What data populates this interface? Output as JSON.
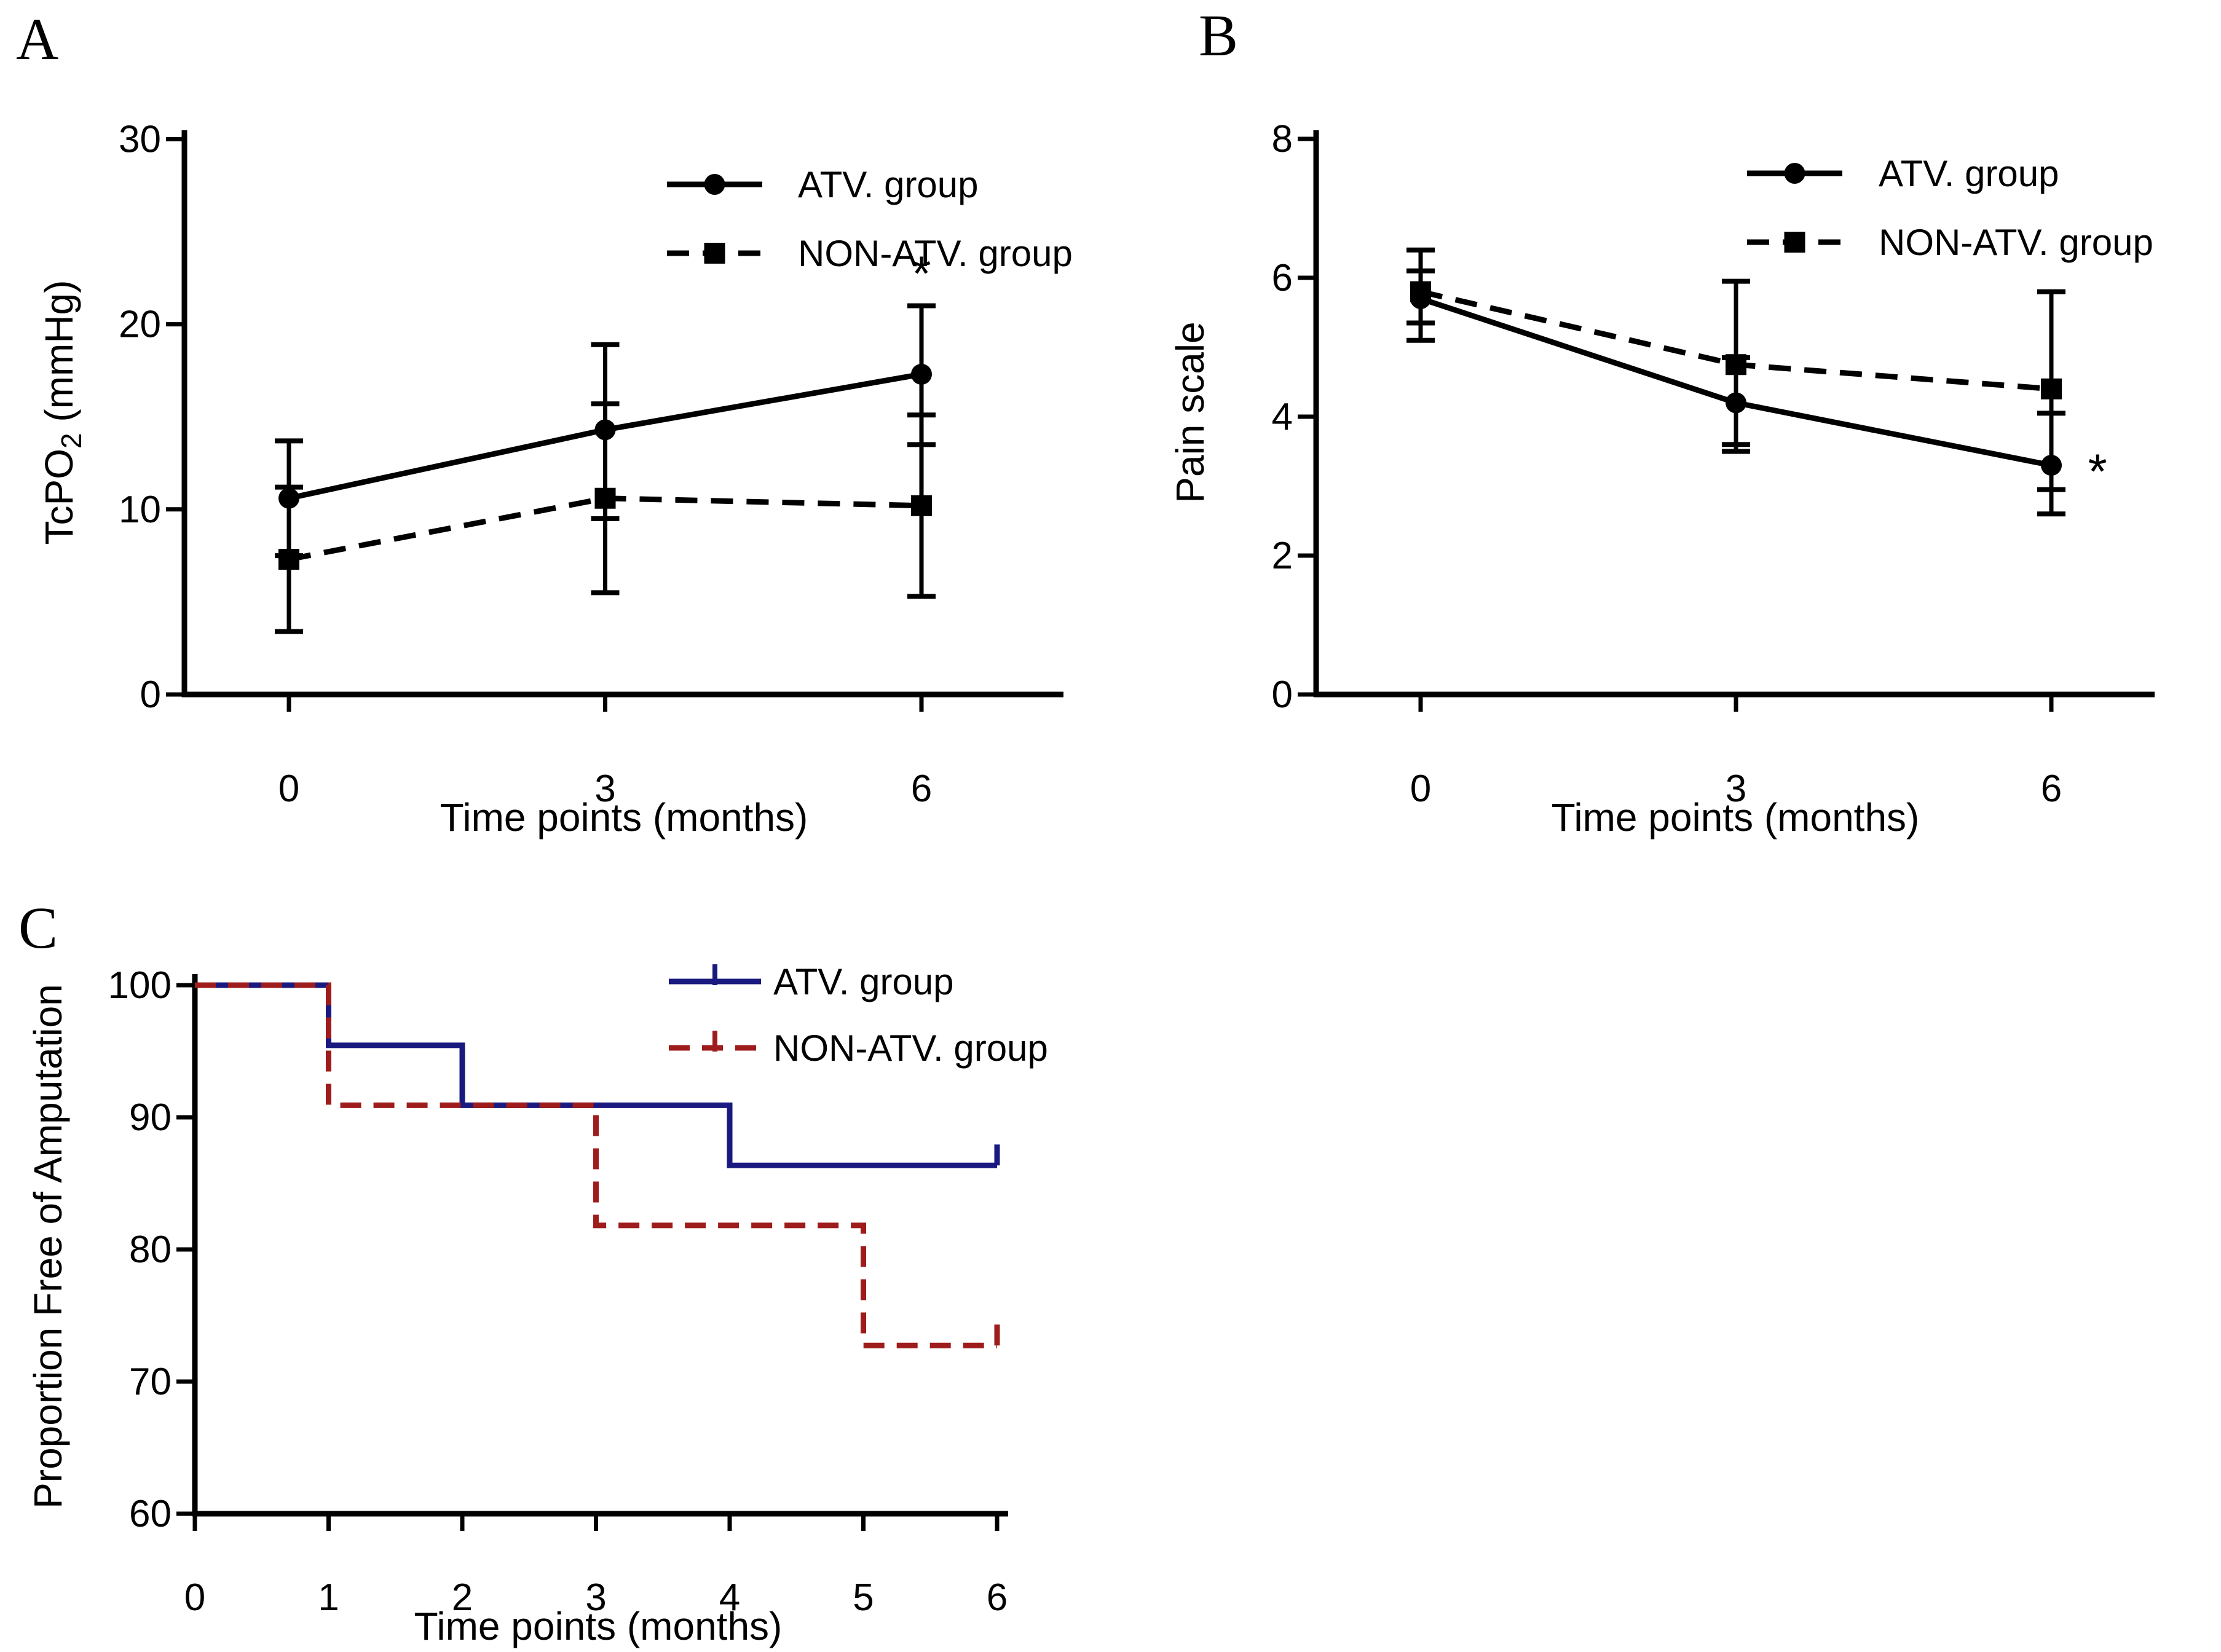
{
  "page": {
    "background": "#ffffff"
  },
  "colors": {
    "black": "#000000",
    "atv_blue": "#191980",
    "non_atv_red": "#9e1c1c"
  },
  "panel_labels": [
    "A",
    "B",
    "C"
  ],
  "chart_data": [
    {
      "id": "A",
      "panel_label": "A",
      "type": "line",
      "xlabel": "Time points (months)",
      "ylabel": "TcPO2 (mmHg)",
      "ylabel_parts": {
        "pre": "TcPO",
        "sub": "2",
        "post": " (mmHg)"
      },
      "xticks": [
        0,
        3,
        6
      ],
      "yticks": [
        0,
        10,
        20,
        30
      ],
      "xlim": [
        0,
        6
      ],
      "ylim": [
        0,
        30
      ],
      "grid": false,
      "legend_position": "top-right",
      "series": [
        {
          "name": "ATV. group",
          "marker": "circle",
          "line_style": "solid",
          "color": "#000000",
          "x": [
            0,
            3,
            6
          ],
          "values": [
            10.6,
            14.3,
            17.3
          ],
          "err_lo": [
            7.5,
            9.5,
            13.5
          ],
          "err_hi": [
            13.7,
            18.9,
            21.0
          ]
        },
        {
          "name": "NON-ATV. group",
          "marker": "square",
          "line_style": "dashed",
          "color": "#000000",
          "x": [
            0,
            3,
            6
          ],
          "values": [
            7.3,
            10.6,
            10.2
          ],
          "err_lo": [
            3.4,
            5.5,
            5.3
          ],
          "err_hi": [
            11.2,
            15.7,
            15.1
          ]
        }
      ],
      "annotations": [
        {
          "text": "*",
          "x": 6,
          "y": 22.7
        }
      ]
    },
    {
      "id": "B",
      "panel_label": "B",
      "type": "line",
      "xlabel": "Time points (months)",
      "ylabel": "Pain scale",
      "xticks": [
        0,
        3,
        6
      ],
      "yticks": [
        0,
        2,
        4,
        6,
        8
      ],
      "xlim": [
        0,
        6
      ],
      "ylim": [
        0,
        8
      ],
      "grid": false,
      "legend_position": "top-right",
      "series": [
        {
          "name": "ATV. group",
          "marker": "circle",
          "line_style": "solid",
          "color": "#000000",
          "x": [
            0,
            3,
            6
          ],
          "values": [
            5.7,
            4.2,
            3.3
          ],
          "err_lo": [
            5.1,
            3.6,
            2.6
          ],
          "err_hi": [
            6.1,
            4.85,
            4.05
          ]
        },
        {
          "name": "NON-ATV. group",
          "marker": "square",
          "line_style": "dashed",
          "color": "#000000",
          "x": [
            0,
            3,
            6
          ],
          "values": [
            5.8,
            4.75,
            4.4
          ],
          "err_lo": [
            5.35,
            3.5,
            2.95
          ],
          "err_hi": [
            6.4,
            5.95,
            5.8
          ]
        }
      ],
      "annotations": [
        {
          "text": "*",
          "x": 6.44,
          "y": 3.2
        }
      ]
    },
    {
      "id": "C",
      "panel_label": "C",
      "type": "step",
      "xlabel": "Time points (months)",
      "ylabel": "Proportion Free of Amputation",
      "xticks": [
        0,
        1,
        2,
        3,
        4,
        5,
        6
      ],
      "yticks": [
        60,
        70,
        80,
        90,
        100
      ],
      "xlim": [
        0,
        6
      ],
      "ylim": [
        60,
        100
      ],
      "grid": false,
      "legend_position": "top-right",
      "series": [
        {
          "name": "ATV. group",
          "marker": "tick",
          "line_style": "solid",
          "color": "#191980",
          "points": [
            [
              0,
              100
            ],
            [
              1,
              100
            ],
            [
              1,
              95.45
            ],
            [
              2,
              95.45
            ],
            [
              2,
              90.91
            ],
            [
              4,
              90.91
            ],
            [
              4,
              86.36
            ],
            [
              6,
              86.36
            ]
          ],
          "end_tick": true
        },
        {
          "name": "NON-ATV. group",
          "marker": "tick",
          "line_style": "dashed",
          "color": "#9e1c1c",
          "points": [
            [
              0,
              100
            ],
            [
              1,
              100
            ],
            [
              1,
              90.91
            ],
            [
              3,
              90.91
            ],
            [
              3,
              81.82
            ],
            [
              5,
              81.82
            ],
            [
              5,
              72.73
            ],
            [
              6,
              72.73
            ]
          ],
          "end_tick": true
        }
      ],
      "annotations": []
    }
  ]
}
